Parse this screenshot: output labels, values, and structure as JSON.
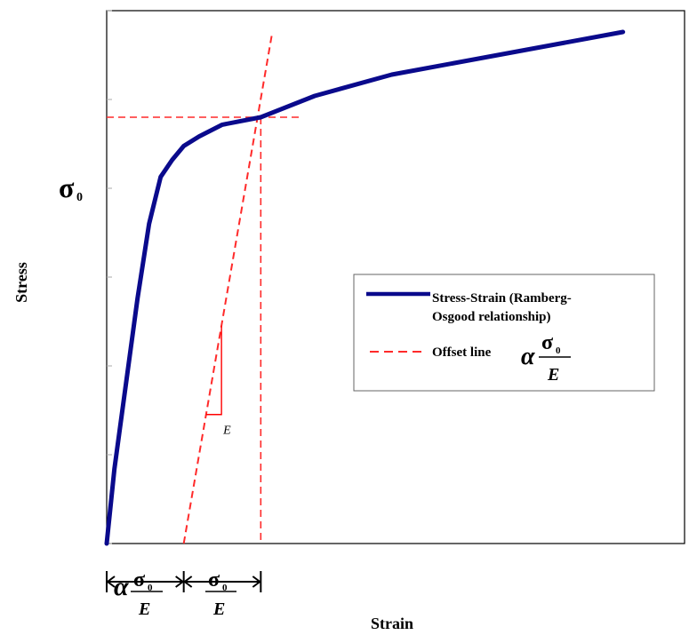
{
  "chart_data": {
    "type": "line",
    "xlabel": "Strain",
    "ylabel": "Stress",
    "grid": false,
    "legend_position": "center-right",
    "legend": {
      "curve_line1": "Stress-Strain (Ramberg-",
      "curve_line2": "Osgood relationship)",
      "offset_label": "Offset line"
    },
    "symbols": {
      "sigma0": "σ",
      "sub0": "0",
      "alpha": "α",
      "E": "E"
    },
    "xlim": [
      0,
      7.5
    ],
    "ylim": [
      0,
      5
    ],
    "yield_point": {
      "x": 2,
      "y": 4
    },
    "offset_start_x": 1,
    "series": [
      {
        "x": [
          0,
          0.1,
          0.25,
          0.4,
          0.55,
          0.7,
          0.85,
          1.0,
          1.2,
          1.5,
          2.0,
          2.7,
          3.7,
          5.2,
          6.7
        ],
        "y": [
          0,
          0.7,
          1.5,
          2.3,
          3.0,
          3.44,
          3.6,
          3.73,
          3.82,
          3.93,
          4.0,
          4.2,
          4.4,
          4.6,
          4.8
        ],
        "color": "#0a0a8c"
      },
      {
        "x": [
          1,
          2.15
        ],
        "y": [
          0,
          4.8
        ],
        "color": "#ff0000",
        "dashed": true
      }
    ]
  }
}
